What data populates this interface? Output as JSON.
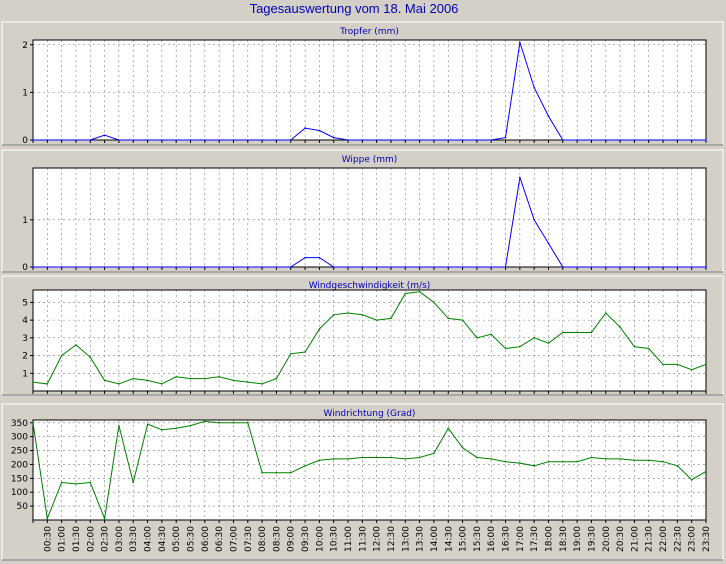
{
  "title": "Tagesauswertung vom 18. Mai 2006",
  "colors": {
    "background": "#d4d0c8",
    "plot_background": "#ffffff",
    "grid": "#808080",
    "title": "#0000b4",
    "rain_line": "#0000ff",
    "wind_line": "#008000"
  },
  "chart_data": [
    {
      "type": "line",
      "title": "Tropfer (mm)",
      "series_color": "#0000ff",
      "ylim": [
        0,
        2.1
      ],
      "yticks": [
        0,
        1,
        2
      ],
      "grid": true,
      "x": [
        "00:00",
        "00:30",
        "01:00",
        "01:30",
        "02:00",
        "02:30",
        "03:00",
        "03:30",
        "04:00",
        "04:30",
        "05:00",
        "05:30",
        "06:00",
        "06:30",
        "07:00",
        "07:30",
        "08:00",
        "08:30",
        "09:00",
        "09:30",
        "10:00",
        "10:30",
        "11:00",
        "11:30",
        "12:00",
        "12:30",
        "13:00",
        "13:30",
        "14:00",
        "14:30",
        "15:00",
        "15:30",
        "16:00",
        "16:30",
        "17:00",
        "17:30",
        "18:00",
        "18:30",
        "19:00",
        "19:30",
        "20:00",
        "20:30",
        "21:00",
        "21:30",
        "22:00",
        "22:30",
        "23:00",
        "23:30"
      ],
      "values": [
        0,
        0,
        0,
        0,
        0,
        0.1,
        0,
        0,
        0,
        0,
        0,
        0,
        0,
        0,
        0,
        0,
        0,
        0,
        0,
        0.25,
        0.2,
        0.05,
        0,
        0,
        0,
        0,
        0,
        0,
        0,
        0,
        0,
        0,
        0,
        0.05,
        2.05,
        1.1,
        0.5,
        0,
        0,
        0,
        0,
        0,
        0,
        0,
        0,
        0,
        0,
        0
      ]
    },
    {
      "type": "line",
      "title": "Wippe (mm)",
      "series_color": "#0000ff",
      "ylim": [
        0,
        2.1
      ],
      "yticks": [
        0,
        1
      ],
      "grid": true,
      "x": [
        "00:00",
        "00:30",
        "01:00",
        "01:30",
        "02:00",
        "02:30",
        "03:00",
        "03:30",
        "04:00",
        "04:30",
        "05:00",
        "05:30",
        "06:00",
        "06:30",
        "07:00",
        "07:30",
        "08:00",
        "08:30",
        "09:00",
        "09:30",
        "10:00",
        "10:30",
        "11:00",
        "11:30",
        "12:00",
        "12:30",
        "13:00",
        "13:30",
        "14:00",
        "14:30",
        "15:00",
        "15:30",
        "16:00",
        "16:30",
        "17:00",
        "17:30",
        "18:00",
        "18:30",
        "19:00",
        "19:30",
        "20:00",
        "20:30",
        "21:00",
        "21:30",
        "22:00",
        "22:30",
        "23:00",
        "23:30"
      ],
      "values": [
        0,
        0,
        0,
        0,
        0,
        0,
        0,
        0,
        0,
        0,
        0,
        0,
        0,
        0,
        0,
        0,
        0,
        0,
        0,
        0.2,
        0.2,
        0,
        0,
        0,
        0,
        0,
        0,
        0,
        0,
        0,
        0,
        0,
        0,
        0,
        1.9,
        1.0,
        0.5,
        0,
        0,
        0,
        0,
        0,
        0,
        0,
        0,
        0,
        0,
        0
      ]
    },
    {
      "type": "line",
      "title": "Windgeschwindigkeit (m/s)",
      "series_color": "#008000",
      "ylim": [
        0,
        5.7
      ],
      "yticks": [
        1,
        2,
        3,
        4,
        5
      ],
      "grid": true,
      "x": [
        "00:00",
        "00:30",
        "01:00",
        "01:30",
        "02:00",
        "02:30",
        "03:00",
        "03:30",
        "04:00",
        "04:30",
        "05:00",
        "05:30",
        "06:00",
        "06:30",
        "07:00",
        "07:30",
        "08:00",
        "08:30",
        "09:00",
        "09:30",
        "10:00",
        "10:30",
        "11:00",
        "11:30",
        "12:00",
        "12:30",
        "13:00",
        "13:30",
        "14:00",
        "14:30",
        "15:00",
        "15:30",
        "16:00",
        "16:30",
        "17:00",
        "17:30",
        "18:00",
        "18:30",
        "19:00",
        "19:30",
        "20:00",
        "20:30",
        "21:00",
        "21:30",
        "22:00",
        "22:30",
        "23:00",
        "23:30"
      ],
      "values": [
        0.5,
        0.4,
        2.0,
        2.6,
        1.9,
        0.6,
        0.4,
        0.7,
        0.6,
        0.4,
        0.8,
        0.7,
        0.7,
        0.8,
        0.6,
        0.5,
        0.4,
        0.7,
        2.1,
        2.2,
        3.5,
        4.3,
        4.4,
        4.3,
        4.0,
        4.1,
        5.5,
        5.6,
        5.0,
        4.1,
        4.0,
        3.0,
        3.2,
        2.4,
        2.5,
        3.0,
        2.7,
        3.3,
        3.3,
        3.3,
        4.4,
        3.6,
        2.5,
        2.4,
        1.5,
        1.5,
        1.2,
        1.5
      ]
    },
    {
      "type": "line",
      "title": "Windrichtung (Grad)",
      "series_color": "#008000",
      "ylim": [
        0,
        360
      ],
      "yticks": [
        50,
        100,
        150,
        200,
        250,
        300,
        350
      ],
      "grid": true,
      "x": [
        "00:00",
        "00:30",
        "01:00",
        "01:30",
        "02:00",
        "02:30",
        "03:00",
        "03:30",
        "04:00",
        "04:30",
        "05:00",
        "05:30",
        "06:00",
        "06:30",
        "07:00",
        "07:30",
        "08:00",
        "08:30",
        "09:00",
        "09:30",
        "10:00",
        "10:30",
        "11:00",
        "11:30",
        "12:00",
        "12:30",
        "13:00",
        "13:30",
        "14:00",
        "14:30",
        "15:00",
        "15:30",
        "16:00",
        "16:30",
        "17:00",
        "17:30",
        "18:00",
        "18:30",
        "19:00",
        "19:30",
        "20:00",
        "20:30",
        "21:00",
        "21:30",
        "22:00",
        "22:30",
        "23:00",
        "23:30"
      ],
      "values": [
        350,
        5,
        135,
        130,
        135,
        5,
        340,
        135,
        345,
        325,
        330,
        340,
        355,
        350,
        350,
        350,
        170,
        170,
        170,
        195,
        215,
        220,
        220,
        225,
        225,
        225,
        220,
        225,
        240,
        330,
        260,
        225,
        220,
        210,
        205,
        195,
        210,
        210,
        210,
        225,
        220,
        220,
        215,
        215,
        210,
        195,
        145,
        175
      ],
      "xtick_labels": [
        "00:30",
        "01:00",
        "01:30",
        "02:00",
        "02:30",
        "03:00",
        "03:30",
        "04:00",
        "04:30",
        "05:00",
        "05:30",
        "06:00",
        "06:30",
        "07:00",
        "07:30",
        "08:00",
        "08:30",
        "09:00",
        "09:30",
        "10:00",
        "10:30",
        "11:00",
        "11:30",
        "12:00",
        "12:30",
        "13:00",
        "13:30",
        "14:00",
        "14:30",
        "15:00",
        "15:30",
        "16:00",
        "16:30",
        "17:00",
        "17:30",
        "18:00",
        "18:30",
        "19:00",
        "19:30",
        "20:00",
        "20:30",
        "21:00",
        "21:30",
        "22:00",
        "22:30",
        "23:00",
        "23:30"
      ]
    }
  ]
}
